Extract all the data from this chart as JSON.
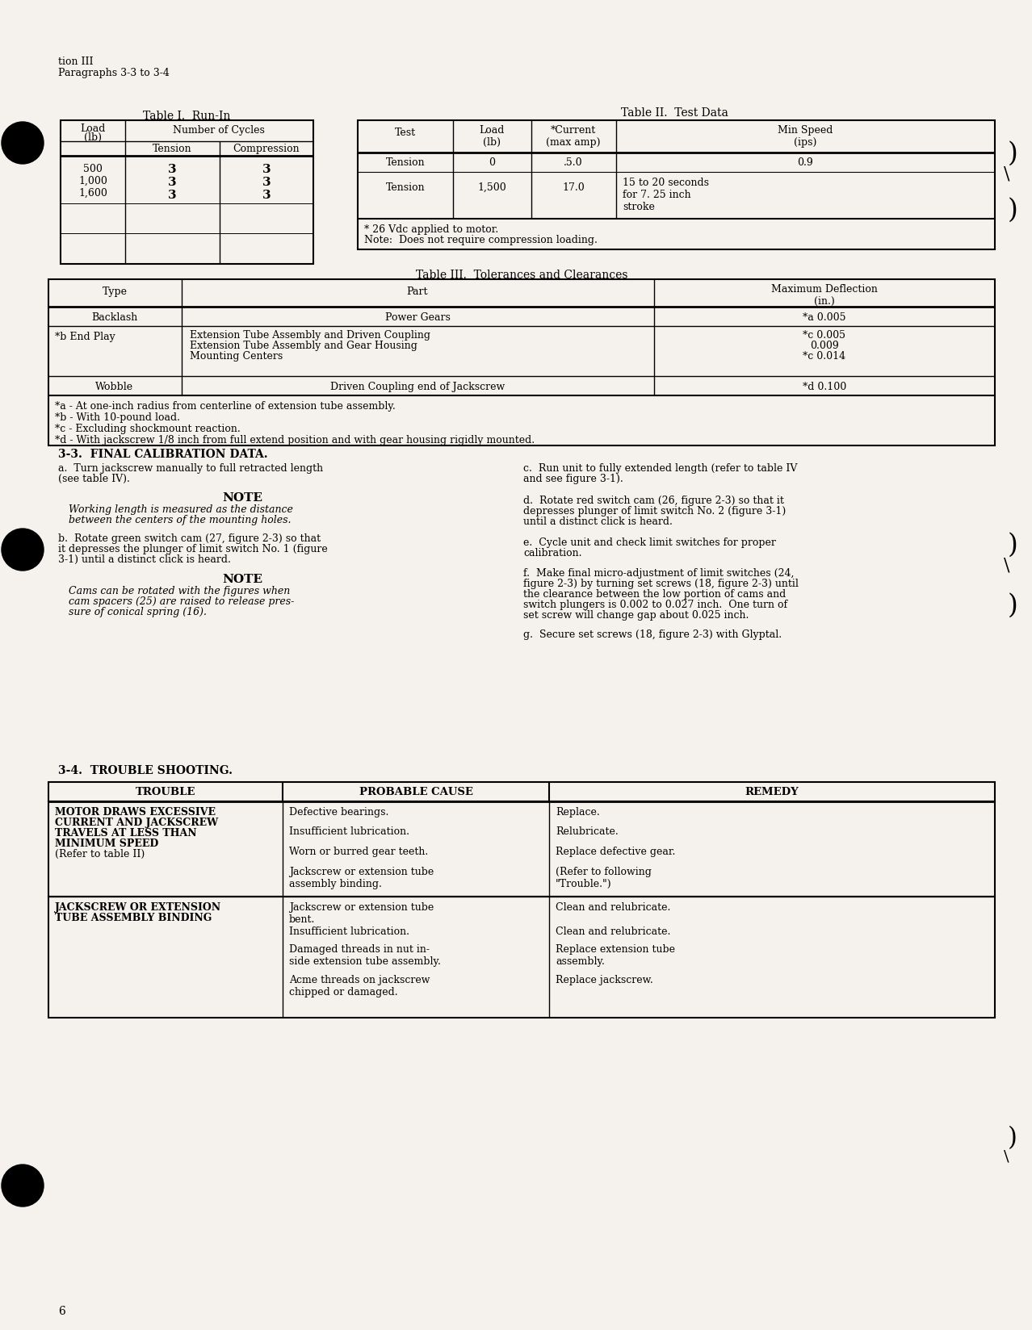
{
  "background_color": "#f5f2ed",
  "page_number": "6",
  "header_line1": "tion III",
  "header_line2": "Paragraphs 3-3 to 3-4",
  "table1_title": "Table I.  Run-In",
  "table2_title": "Table II.  Test Data",
  "table2_footnote1": "* 26 Vdc applied to motor.",
  "table2_footnote2": "Note:  Does not require compression loading.",
  "table3_title": "Table III.  Tolerances and Clearances",
  "table3_footnotes": [
    "*a - At one-inch radius from centerline of extension tube assembly.",
    "*b - With 10-pound load.",
    "*c - Excluding shockmount reaction.",
    "*d - With jackscrew 1/8 inch from full extend position and with gear housing rigidly mounted."
  ],
  "section33_title": "3-3.  FINAL CALIBRATION DATA.",
  "section34_title": "3-4.  TROUBLE SHOOTING."
}
